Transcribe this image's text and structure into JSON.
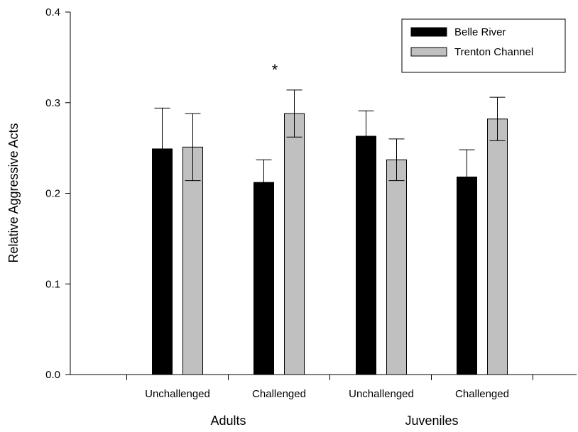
{
  "chart_data": {
    "type": "bar",
    "ylabel": "Relative Aggressive Acts",
    "xlabel": "",
    "ylim": [
      0,
      0.4
    ],
    "yticks": [
      "0.0",
      "0.1",
      "0.2",
      "0.3",
      "0.4"
    ],
    "categories": [
      "Unchallenged",
      "Challenged",
      "Unchallenged",
      "Challenged"
    ],
    "groups": [
      {
        "label": "Adults",
        "categories": [
          0,
          1
        ]
      },
      {
        "label": "Juveniles",
        "categories": [
          2,
          3
        ]
      }
    ],
    "series": [
      {
        "name": "Belle River",
        "color": "#000000",
        "values": [
          0.249,
          0.212,
          0.263,
          0.218
        ],
        "errors": [
          0.045,
          0.025,
          0.028,
          0.03
        ]
      },
      {
        "name": "Trenton Channel",
        "color": "#c0c0c0",
        "values": [
          0.251,
          0.288,
          0.237,
          0.282
        ],
        "errors": [
          0.037,
          0.026,
          0.023,
          0.024
        ]
      }
    ],
    "annotations": [
      {
        "text": "*",
        "category": 1
      }
    ],
    "legend_position": "top-right",
    "grid": false
  }
}
